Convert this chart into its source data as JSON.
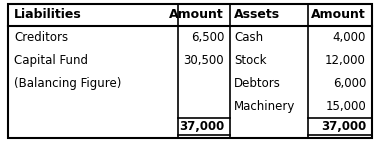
{
  "headers": [
    "Liabilities",
    "Amount",
    "Assets",
    "Amount"
  ],
  "liabilities": [
    {
      "name": "Creditors",
      "amount": "6,500"
    },
    {
      "name": "Capital Fund",
      "amount": "30,500"
    },
    {
      "name": "(Balancing Figure)",
      "amount": ""
    }
  ],
  "assets": [
    {
      "name": "Cash",
      "amount": "4,000"
    },
    {
      "name": "Stock",
      "amount": "12,000"
    },
    {
      "name": "Debtors",
      "amount": "6,000"
    },
    {
      "name": "Machinery",
      "amount": "15,000"
    }
  ],
  "total_liabilities": "37,000",
  "total_assets": "37,000",
  "border_color": "#000000",
  "font_size": 8.5,
  "header_font_size": 9.0
}
